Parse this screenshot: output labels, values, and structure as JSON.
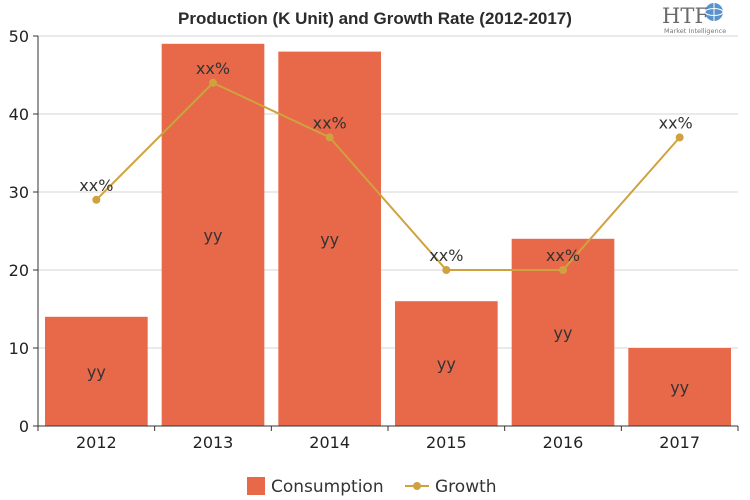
{
  "chart_data": {
    "type": "bar",
    "title": "Production (K Unit) and Growth Rate (2012-2017)",
    "categories": [
      "2012",
      "2013",
      "2014",
      "2015",
      "2016",
      "2017"
    ],
    "ylim": [
      0,
      50
    ],
    "yticks": [
      "0",
      "10",
      "20",
      "30",
      "40",
      "50"
    ],
    "grid": true,
    "legend_position": "bottom",
    "series": [
      {
        "name": "Consumption",
        "type": "bar",
        "color": "#e8684a",
        "values": [
          14,
          49,
          48,
          16,
          24,
          10
        ],
        "labels": [
          "yy",
          "yy",
          "yy",
          "yy",
          "yy",
          "yy"
        ]
      },
      {
        "name": "Growth",
        "type": "line",
        "color": "#cfa23f",
        "values": [
          29,
          44,
          37,
          20,
          20,
          37
        ],
        "labels": [
          "xx%",
          "xx%",
          "xx%",
          "xx%",
          "xx%",
          ""
        ]
      }
    ],
    "annotations": [
      "xx%"
    ]
  },
  "logo": {
    "text": "HTF",
    "subtext": "Market Intelligence"
  }
}
